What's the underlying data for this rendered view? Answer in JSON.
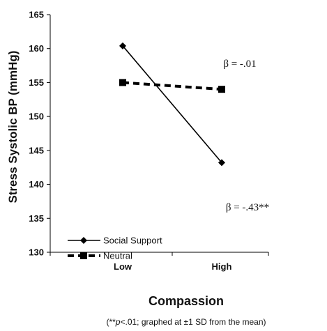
{
  "chart_data": {
    "type": "line",
    "xlabel": "Compassion",
    "ylabel": "Stress Systolic BP (mmHg)",
    "categories": [
      "Low",
      "High"
    ],
    "ylim": [
      130,
      165
    ],
    "yticks": [
      130,
      135,
      140,
      145,
      150,
      155,
      160,
      165
    ],
    "series": [
      {
        "name": "Social Support",
        "values": [
          160.4,
          143.2
        ],
        "line_style": "solid",
        "marker": "diamond",
        "color": "#000000"
      },
      {
        "name": "Neutral",
        "values": [
          155.0,
          154.0
        ],
        "line_style": "dashed",
        "marker": "square",
        "color": "#000000"
      }
    ],
    "annotations": [
      {
        "text": "β = -.01",
        "series": "Neutral"
      },
      {
        "text": "β = -.43**",
        "series": "Social Support"
      }
    ],
    "legend_position": "bottom-left",
    "note": {
      "prefix": "(**",
      "italic": "p",
      "suffix": "<.01; graphed at ±1 SD from the mean)"
    }
  }
}
